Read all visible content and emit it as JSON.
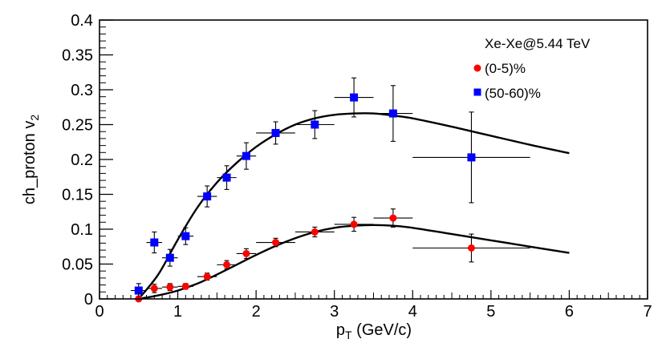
{
  "chart_data": {
    "type": "scatter",
    "ylabel_main": "ch_proton v",
    "ylabel_sub": "2",
    "xlabel_main": "p",
    "xlabel_sub": "T",
    "xlabel_unit": " (GeV/c)",
    "xlim": [
      0,
      7
    ],
    "ylim": [
      0,
      0.4
    ],
    "x_ticks": [
      0,
      1,
      2,
      3,
      4,
      5,
      6,
      7
    ],
    "x_tick_labels": [
      "0",
      "1",
      "2",
      "3",
      "4",
      "5",
      "6",
      "7"
    ],
    "y_ticks": [
      0,
      0.05,
      0.1,
      0.15,
      0.2,
      0.25,
      0.3,
      0.35,
      0.4
    ],
    "y_tick_labels": [
      "0",
      "0.05",
      "0.1",
      "0.15",
      "0.2",
      "0.25",
      "0.3",
      "0.35",
      "0.4"
    ],
    "grid": false,
    "legend_title": "Xe-Xe@5.44 TeV",
    "legend_position": "top-right",
    "series": [
      {
        "name": "(0-5)%",
        "marker": "circle",
        "color": "#ff0000",
        "x": [
          0.5,
          0.7,
          0.9,
          1.1,
          1.375,
          1.625,
          1.875,
          2.25,
          2.75,
          3.25,
          3.75,
          4.75
        ],
        "y": [
          0.0,
          0.015,
          0.017,
          0.018,
          0.032,
          0.049,
          0.065,
          0.081,
          0.096,
          0.107,
          0.116,
          0.073
        ],
        "xerr": [
          0.1,
          0.1,
          0.1,
          0.1,
          0.125,
          0.125,
          0.125,
          0.25,
          0.25,
          0.25,
          0.25,
          0.75
        ],
        "yerr": [
          0.004,
          0.006,
          0.005,
          0.004,
          0.005,
          0.006,
          0.007,
          0.006,
          0.007,
          0.01,
          0.013,
          0.02
        ],
        "fit": {
          "x": [
            0.5,
            0.75,
            1.0,
            1.25,
            1.5,
            1.75,
            2.0,
            2.25,
            2.5,
            2.75,
            3.0,
            3.25,
            3.5,
            3.75,
            4.0,
            4.5,
            5.0,
            5.5,
            6.0
          ],
          "y": [
            0.0,
            0.005,
            0.012,
            0.022,
            0.035,
            0.049,
            0.063,
            0.076,
            0.087,
            0.096,
            0.102,
            0.105,
            0.106,
            0.105,
            0.102,
            0.093,
            0.084,
            0.075,
            0.066
          ]
        }
      },
      {
        "name": "(50-60)%",
        "marker": "square",
        "color": "#0000ff",
        "x": [
          0.5,
          0.7,
          0.9,
          1.1,
          1.375,
          1.625,
          1.875,
          2.25,
          2.75,
          3.25,
          3.75,
          4.75
        ],
        "y": [
          0.012,
          0.081,
          0.059,
          0.09,
          0.147,
          0.174,
          0.205,
          0.238,
          0.25,
          0.289,
          0.266,
          0.203
        ],
        "xerr": [
          0.1,
          0.1,
          0.1,
          0.1,
          0.125,
          0.125,
          0.125,
          0.25,
          0.25,
          0.25,
          0.25,
          0.75
        ],
        "yerr": [
          0.01,
          0.015,
          0.012,
          0.012,
          0.015,
          0.017,
          0.019,
          0.016,
          0.02,
          0.028,
          0.04,
          0.065
        ],
        "fit": {
          "x": [
            0.5,
            0.75,
            1.0,
            1.25,
            1.5,
            1.75,
            2.0,
            2.25,
            2.5,
            2.75,
            3.0,
            3.25,
            3.5,
            3.75,
            4.0,
            4.5,
            5.0,
            5.5,
            6.0
          ],
          "y": [
            0.0,
            0.035,
            0.085,
            0.131,
            0.167,
            0.195,
            0.218,
            0.236,
            0.25,
            0.259,
            0.264,
            0.266,
            0.266,
            0.263,
            0.259,
            0.247,
            0.234,
            0.221,
            0.209
          ]
        }
      }
    ]
  }
}
